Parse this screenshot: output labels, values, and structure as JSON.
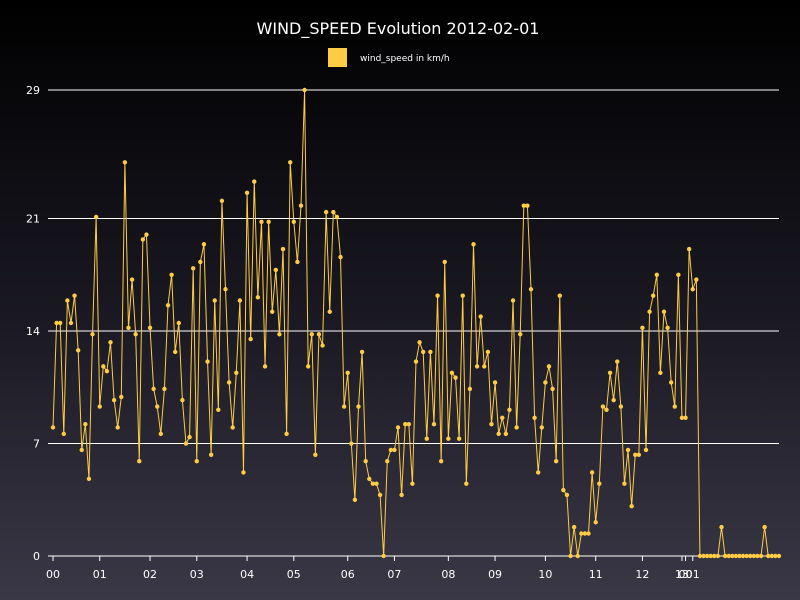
{
  "chart_data": {
    "type": "line",
    "title": "WIND_SPEED Evolution 2012-02-01",
    "series": [
      {
        "name": "wind_speed in km/h",
        "color": "#ffcc44",
        "values": [
          8,
          14.5,
          14.5,
          7.6,
          15.9,
          14.5,
          16.2,
          12.8,
          6.6,
          8.2,
          4.8,
          13.8,
          21.1,
          9.3,
          11.8,
          11.5,
          13.3,
          9.7,
          8,
          9.9,
          24.5,
          14.2,
          17.2,
          13.8,
          5.9,
          19.7,
          20,
          14.2,
          10.4,
          9.3,
          7.6,
          10.4,
          15.6,
          17.5,
          12.7,
          14.5,
          9.7,
          7,
          7.4,
          17.9,
          5.9,
          18.3,
          19.4,
          12.1,
          6.3,
          15.9,
          9.1,
          22.1,
          16.6,
          10.8,
          8,
          11.4,
          15.9,
          5.2,
          22.6,
          13.5,
          23.3,
          16.1,
          20.8,
          11.8,
          20.8,
          15.2,
          17.8,
          13.8,
          19.1,
          7.6,
          24.5,
          20.8,
          18.3,
          21.8,
          29,
          11.8,
          13.8,
          6.3,
          13.8,
          13.1,
          21.4,
          15.2,
          21.4,
          21.1,
          18.6,
          9.3,
          11.4,
          7,
          3.5,
          9.3,
          12.7,
          5.9,
          4.8,
          4.5,
          4.5,
          3.8,
          0,
          5.9,
          6.6,
          6.6,
          8,
          3.8,
          8.2,
          8.2,
          4.5,
          12.1,
          13.3,
          12.7,
          7.3,
          12.7,
          8.2,
          16.2,
          5.9,
          18.3,
          7.3,
          11.4,
          11.1,
          7.3,
          16.2,
          4.5,
          10.4,
          19.4,
          11.8,
          14.9,
          11.8,
          12.7,
          8.2,
          10.8,
          7.6,
          8.6,
          7.6,
          9.1,
          15.9,
          8,
          13.8,
          21.8,
          21.8,
          16.6,
          8.6,
          5.2,
          8,
          10.8,
          11.8,
          10.4,
          5.9,
          16.2,
          4.1,
          3.8,
          0,
          1.8,
          0,
          1.4,
          1.4,
          1.4,
          5.2,
          2.1,
          4.5,
          9.3,
          9.1,
          11.4,
          9.7,
          12.1,
          9.3,
          4.5,
          6.6,
          3.1,
          6.3,
          6.3,
          14.2,
          6.6,
          15.2,
          16.2,
          17.5,
          11.4,
          15.2,
          14.2,
          10.8,
          9.3,
          17.5,
          8.6,
          8.6,
          19.1,
          16.6,
          17.2,
          0,
          0,
          0,
          0,
          0,
          0,
          1.8,
          0,
          0,
          0,
          0,
          0,
          0,
          0,
          0,
          0,
          0,
          0,
          1.8,
          0,
          0,
          0,
          0
        ]
      }
    ],
    "x_tick_labels": [
      "00",
      "01",
      "02",
      "03",
      "04",
      "05",
      "06",
      "07",
      "08",
      "09",
      "10",
      "11",
      "12",
      "13",
      "00",
      "01"
    ],
    "x_tick_index": [
      0,
      13,
      27,
      40,
      54,
      67,
      82,
      95,
      110,
      123,
      137,
      151,
      164,
      175,
      176,
      178
    ],
    "y_ticks": [
      0,
      7,
      14,
      21,
      29
    ],
    "ylim": [
      0,
      29
    ],
    "grid": true,
    "legend_position": "top-center"
  }
}
